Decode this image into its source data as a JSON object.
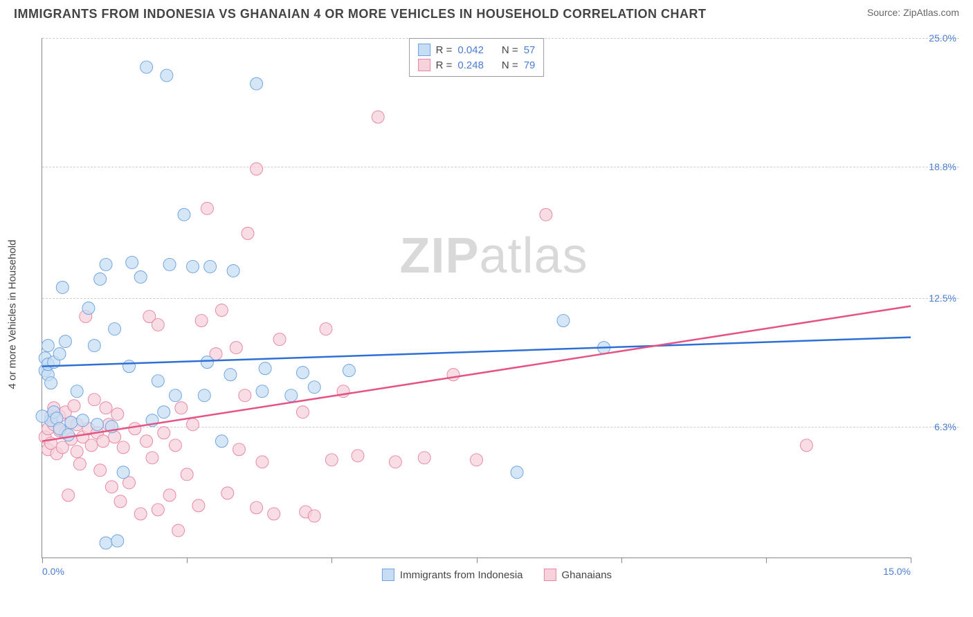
{
  "title": "IMMIGRANTS FROM INDONESIA VS GHANAIAN 4 OR MORE VEHICLES IN HOUSEHOLD CORRELATION CHART",
  "source": "Source: ZipAtlas.com",
  "ylabel": "4 or more Vehicles in Household",
  "watermark_a": "ZIP",
  "watermark_b": "atlas",
  "chart": {
    "type": "scatter",
    "xlim": [
      0,
      15
    ],
    "ylim": [
      0,
      25
    ],
    "x_ticks": [
      0,
      2.5,
      5,
      7.5,
      10,
      12.5,
      15
    ],
    "x_tick_labels": {
      "0": "0.0%",
      "15": "15.0%"
    },
    "y_grid": [
      6.3,
      12.5,
      18.8,
      25.0
    ],
    "y_tick_labels": [
      "6.3%",
      "12.5%",
      "18.8%",
      "25.0%"
    ],
    "background_color": "#ffffff",
    "grid_color": "#cccccc",
    "axis_color": "#888888",
    "series": [
      {
        "name": "Immigrants from Indonesia",
        "marker_fill": "#c7ddf3",
        "marker_stroke": "#6ca3e0",
        "line_color": "#2e6fd6",
        "r_value": "0.042",
        "n_value": "57",
        "trend": {
          "x1": 0,
          "y1": 9.2,
          "x2": 15,
          "y2": 10.6
        },
        "points": [
          [
            0.05,
            9.0
          ],
          [
            0.05,
            9.6
          ],
          [
            0.1,
            8.8
          ],
          [
            0.1,
            9.3
          ],
          [
            0.1,
            10.2
          ],
          [
            0.15,
            8.4
          ],
          [
            0.15,
            6.6
          ],
          [
            0.2,
            9.4
          ],
          [
            0.2,
            7.0
          ],
          [
            0.25,
            6.7
          ],
          [
            0.3,
            9.8
          ],
          [
            0.3,
            6.2
          ],
          [
            0.35,
            13.0
          ],
          [
            0.4,
            10.4
          ],
          [
            0.45,
            5.9
          ],
          [
            0.5,
            6.5
          ],
          [
            0.6,
            8.0
          ],
          [
            0.7,
            6.6
          ],
          [
            0.8,
            12.0
          ],
          [
            0.9,
            10.2
          ],
          [
            0.95,
            6.4
          ],
          [
            1.0,
            13.4
          ],
          [
            1.1,
            14.1
          ],
          [
            1.1,
            0.7
          ],
          [
            1.2,
            6.3
          ],
          [
            1.25,
            11.0
          ],
          [
            1.3,
            0.8
          ],
          [
            1.4,
            4.1
          ],
          [
            1.5,
            9.2
          ],
          [
            1.55,
            14.2
          ],
          [
            1.7,
            13.5
          ],
          [
            1.8,
            23.6
          ],
          [
            1.9,
            6.6
          ],
          [
            2.0,
            8.5
          ],
          [
            2.1,
            7.0
          ],
          [
            2.15,
            23.2
          ],
          [
            2.2,
            14.1
          ],
          [
            2.3,
            7.8
          ],
          [
            2.45,
            16.5
          ],
          [
            2.6,
            14.0
          ],
          [
            2.8,
            7.8
          ],
          [
            2.85,
            9.4
          ],
          [
            2.9,
            14.0
          ],
          [
            3.1,
            5.6
          ],
          [
            3.25,
            8.8
          ],
          [
            3.3,
            13.8
          ],
          [
            3.7,
            22.8
          ],
          [
            3.8,
            8.0
          ],
          [
            3.85,
            9.1
          ],
          [
            4.3,
            7.8
          ],
          [
            4.5,
            8.9
          ],
          [
            4.7,
            8.2
          ],
          [
            5.3,
            9.0
          ],
          [
            8.2,
            4.1
          ],
          [
            9.0,
            11.4
          ],
          [
            9.7,
            10.1
          ],
          [
            0.0,
            6.8
          ]
        ]
      },
      {
        "name": "Ghanaians",
        "marker_fill": "#f6d2dc",
        "marker_stroke": "#e985a3",
        "line_color": "#e55384",
        "r_value": "0.248",
        "n_value": "79",
        "trend": {
          "x1": 0,
          "y1": 5.6,
          "x2": 15,
          "y2": 12.1
        },
        "points": [
          [
            0.05,
            5.8
          ],
          [
            0.1,
            6.2
          ],
          [
            0.1,
            5.2
          ],
          [
            0.15,
            6.8
          ],
          [
            0.15,
            5.5
          ],
          [
            0.2,
            7.2
          ],
          [
            0.2,
            6.4
          ],
          [
            0.25,
            5.0
          ],
          [
            0.3,
            6.1
          ],
          [
            0.3,
            6.8
          ],
          [
            0.35,
            5.3
          ],
          [
            0.4,
            7.0
          ],
          [
            0.4,
            6.0
          ],
          [
            0.45,
            3.0
          ],
          [
            0.5,
            6.5
          ],
          [
            0.5,
            5.7
          ],
          [
            0.55,
            7.3
          ],
          [
            0.6,
            5.1
          ],
          [
            0.6,
            6.4
          ],
          [
            0.65,
            4.5
          ],
          [
            0.7,
            5.8
          ],
          [
            0.75,
            11.6
          ],
          [
            0.8,
            6.2
          ],
          [
            0.85,
            5.4
          ],
          [
            0.9,
            7.6
          ],
          [
            0.95,
            6.0
          ],
          [
            1.0,
            4.2
          ],
          [
            1.05,
            5.6
          ],
          [
            1.1,
            7.2
          ],
          [
            1.15,
            6.4
          ],
          [
            1.2,
            3.4
          ],
          [
            1.25,
            5.8
          ],
          [
            1.3,
            6.9
          ],
          [
            1.35,
            2.7
          ],
          [
            1.4,
            5.3
          ],
          [
            1.5,
            3.6
          ],
          [
            1.6,
            6.2
          ],
          [
            1.7,
            2.1
          ],
          [
            1.8,
            5.6
          ],
          [
            1.85,
            11.6
          ],
          [
            1.9,
            4.8
          ],
          [
            2.0,
            11.2
          ],
          [
            2.0,
            2.3
          ],
          [
            2.1,
            6.0
          ],
          [
            2.2,
            3.0
          ],
          [
            2.3,
            5.4
          ],
          [
            2.35,
            1.3
          ],
          [
            2.4,
            7.2
          ],
          [
            2.5,
            4.0
          ],
          [
            2.6,
            6.4
          ],
          [
            2.7,
            2.5
          ],
          [
            2.75,
            11.4
          ],
          [
            2.85,
            16.8
          ],
          [
            3.0,
            9.8
          ],
          [
            3.1,
            11.9
          ],
          [
            3.2,
            3.1
          ],
          [
            3.35,
            10.1
          ],
          [
            3.4,
            5.2
          ],
          [
            3.5,
            7.8
          ],
          [
            3.55,
            15.6
          ],
          [
            3.7,
            2.4
          ],
          [
            3.7,
            18.7
          ],
          [
            3.8,
            4.6
          ],
          [
            4.0,
            2.1
          ],
          [
            4.1,
            10.5
          ],
          [
            4.5,
            7.0
          ],
          [
            4.55,
            2.2
          ],
          [
            4.7,
            2.0
          ],
          [
            4.9,
            11.0
          ],
          [
            5.0,
            4.7
          ],
          [
            5.2,
            8.0
          ],
          [
            5.45,
            4.9
          ],
          [
            5.8,
            21.2
          ],
          [
            6.1,
            4.6
          ],
          [
            6.6,
            4.8
          ],
          [
            7.1,
            8.8
          ],
          [
            7.5,
            4.7
          ],
          [
            8.7,
            16.5
          ],
          [
            13.2,
            5.4
          ]
        ]
      }
    ]
  },
  "legend": {
    "series1_label": "Immigrants from Indonesia",
    "series2_label": "Ghanaians"
  },
  "stats_labels": {
    "r": "R =",
    "n": "N ="
  }
}
